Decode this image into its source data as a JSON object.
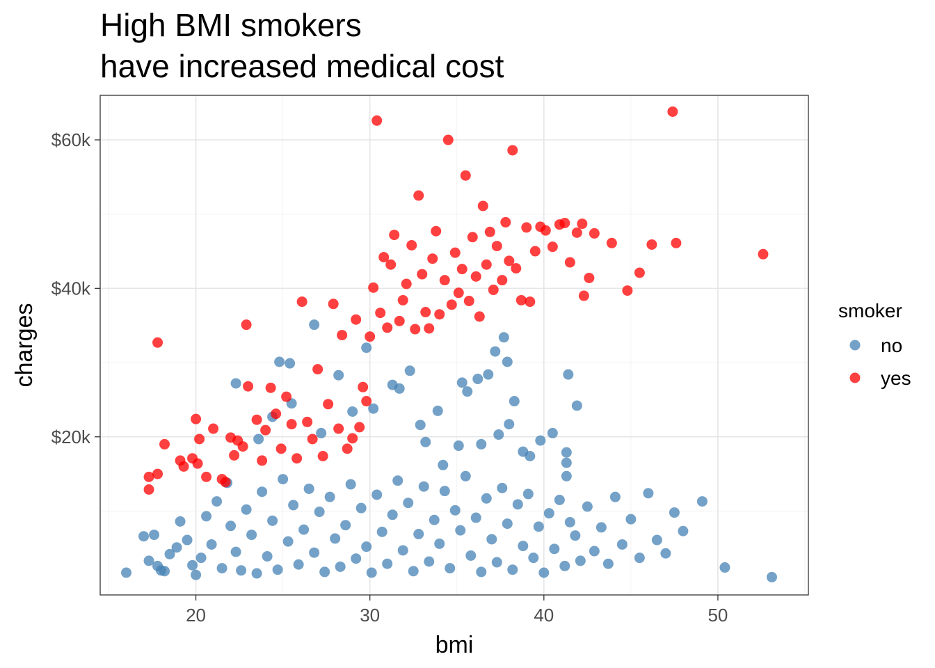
{
  "chart_data": {
    "type": "scatter",
    "title": [
      "High BMI smokers",
      "have increased medical cost"
    ],
    "xlabel": "bmi",
    "ylabel": "charges",
    "xlim": [
      14.5,
      55.2
    ],
    "ylim": [
      -1300,
      66000
    ],
    "x_ticks": [
      20,
      30,
      40,
      50
    ],
    "x_tick_labels": [
      "20",
      "30",
      "40",
      "50"
    ],
    "y_ticks": [
      20000,
      40000,
      60000
    ],
    "y_tick_labels": [
      "$20k",
      "$40k",
      "$60k"
    ],
    "grid": true,
    "legend": {
      "title": "smoker",
      "placement": "right"
    },
    "point_alpha": 0.75,
    "series": [
      {
        "name": "no",
        "color": "#4682b4",
        "points": [
          [
            16.0,
            1700
          ],
          [
            17.0,
            6600
          ],
          [
            17.3,
            3300
          ],
          [
            17.6,
            6800
          ],
          [
            17.8,
            2600
          ],
          [
            18.0,
            2000
          ],
          [
            18.2,
            1900
          ],
          [
            18.5,
            4200
          ],
          [
            18.9,
            5100
          ],
          [
            19.1,
            8600
          ],
          [
            19.5,
            6100
          ],
          [
            19.8,
            2700
          ],
          [
            20.0,
            1400
          ],
          [
            20.3,
            3700
          ],
          [
            20.6,
            9300
          ],
          [
            20.9,
            5500
          ],
          [
            21.2,
            11300
          ],
          [
            21.5,
            2300
          ],
          [
            21.8,
            13800
          ],
          [
            22.0,
            8000
          ],
          [
            22.3,
            4500
          ],
          [
            22.6,
            2000
          ],
          [
            22.9,
            10200
          ],
          [
            23.2,
            6800
          ],
          [
            23.5,
            1600
          ],
          [
            23.8,
            12600
          ],
          [
            24.1,
            3900
          ],
          [
            24.4,
            8700
          ],
          [
            24.7,
            2100
          ],
          [
            25.0,
            14300
          ],
          [
            25.3,
            5900
          ],
          [
            25.6,
            10800
          ],
          [
            25.9,
            2800
          ],
          [
            26.2,
            7500
          ],
          [
            26.5,
            13000
          ],
          [
            26.8,
            4400
          ],
          [
            27.1,
            9900
          ],
          [
            27.4,
            1800
          ],
          [
            27.7,
            11900
          ],
          [
            28.0,
            6300
          ],
          [
            28.3,
            2500
          ],
          [
            28.6,
            8100
          ],
          [
            28.9,
            13600
          ],
          [
            29.2,
            3600
          ],
          [
            29.5,
            10400
          ],
          [
            29.8,
            5200
          ],
          [
            30.1,
            1700
          ],
          [
            30.4,
            12200
          ],
          [
            30.7,
            7200
          ],
          [
            31.0,
            2900
          ],
          [
            31.3,
            9500
          ],
          [
            31.6,
            14100
          ],
          [
            31.9,
            4700
          ],
          [
            32.2,
            11100
          ],
          [
            32.5,
            1900
          ],
          [
            32.8,
            6900
          ],
          [
            33.1,
            13300
          ],
          [
            33.4,
            3200
          ],
          [
            33.7,
            8800
          ],
          [
            34.0,
            5600
          ],
          [
            34.3,
            12700
          ],
          [
            34.6,
            2300
          ],
          [
            34.9,
            10100
          ],
          [
            35.2,
            7400
          ],
          [
            35.5,
            14700
          ],
          [
            35.8,
            4000
          ],
          [
            36.1,
            9100
          ],
          [
            36.4,
            1800
          ],
          [
            36.7,
            11700
          ],
          [
            37.0,
            6200
          ],
          [
            37.3,
            3100
          ],
          [
            37.6,
            13100
          ],
          [
            37.9,
            8300
          ],
          [
            38.2,
            2100
          ],
          [
            38.5,
            10900
          ],
          [
            38.8,
            5300
          ],
          [
            39.1,
            12300
          ],
          [
            39.4,
            3700
          ],
          [
            39.7,
            7900
          ],
          [
            40.0,
            1700
          ],
          [
            40.3,
            9700
          ],
          [
            40.6,
            4900
          ],
          [
            40.9,
            11500
          ],
          [
            41.2,
            2600
          ],
          [
            41.5,
            8500
          ],
          [
            41.8,
            6700
          ],
          [
            42.1,
            3300
          ],
          [
            42.5,
            10600
          ],
          [
            42.9,
            4600
          ],
          [
            43.3,
            7800
          ],
          [
            43.7,
            2900
          ],
          [
            44.1,
            11900
          ],
          [
            44.5,
            5500
          ],
          [
            45.0,
            8900
          ],
          [
            45.5,
            3700
          ],
          [
            46.0,
            12400
          ],
          [
            46.5,
            6100
          ],
          [
            47.0,
            4300
          ],
          [
            47.5,
            9800
          ],
          [
            48.0,
            7300
          ],
          [
            49.1,
            11300
          ],
          [
            50.4,
            2400
          ],
          [
            53.1,
            1100
          ],
          [
            22.3,
            27200
          ],
          [
            23.6,
            19700
          ],
          [
            24.4,
            22700
          ],
          [
            24.8,
            30100
          ],
          [
            25.4,
            29900
          ],
          [
            25.5,
            24500
          ],
          [
            26.8,
            35100
          ],
          [
            27.2,
            20500
          ],
          [
            28.2,
            28300
          ],
          [
            29.0,
            23400
          ],
          [
            29.8,
            32000
          ],
          [
            30.2,
            23800
          ],
          [
            31.3,
            27000
          ],
          [
            31.7,
            26500
          ],
          [
            32.3,
            28900
          ],
          [
            32.9,
            21600
          ],
          [
            33.9,
            23500
          ],
          [
            35.3,
            27300
          ],
          [
            35.6,
            26100
          ],
          [
            36.2,
            27800
          ],
          [
            36.8,
            28400
          ],
          [
            37.2,
            31500
          ],
          [
            37.7,
            33400
          ],
          [
            37.9,
            30100
          ],
          [
            38.0,
            21700
          ],
          [
            38.3,
            24800
          ],
          [
            39.8,
            19500
          ],
          [
            40.5,
            20500
          ],
          [
            41.4,
            28400
          ],
          [
            41.9,
            24200
          ],
          [
            33.2,
            19300
          ],
          [
            34.2,
            16200
          ],
          [
            35.1,
            18800
          ],
          [
            36.4,
            19000
          ],
          [
            37.4,
            20300
          ],
          [
            38.8,
            18000
          ],
          [
            39.2,
            17400
          ],
          [
            41.3,
            17900
          ],
          [
            41.3,
            16500
          ],
          [
            41.3,
            14700
          ]
        ]
      },
      {
        "name": "yes",
        "color": "#ff0000",
        "points": [
          [
            17.3,
            14600
          ],
          [
            17.3,
            12900
          ],
          [
            17.8,
            15000
          ],
          [
            17.8,
            32700
          ],
          [
            18.2,
            19000
          ],
          [
            19.1,
            16800
          ],
          [
            19.3,
            16000
          ],
          [
            19.8,
            17100
          ],
          [
            20.0,
            22400
          ],
          [
            20.1,
            16400
          ],
          [
            20.2,
            19700
          ],
          [
            20.6,
            14600
          ],
          [
            21.0,
            21100
          ],
          [
            21.5,
            14300
          ],
          [
            21.7,
            13900
          ],
          [
            22.0,
            19900
          ],
          [
            22.2,
            17500
          ],
          [
            22.4,
            19500
          ],
          [
            22.7,
            18700
          ],
          [
            22.9,
            35100
          ],
          [
            23.0,
            26800
          ],
          [
            23.5,
            22300
          ],
          [
            23.8,
            16800
          ],
          [
            24.0,
            20900
          ],
          [
            24.3,
            26600
          ],
          [
            24.6,
            23100
          ],
          [
            24.9,
            18400
          ],
          [
            25.2,
            25400
          ],
          [
            25.5,
            21700
          ],
          [
            25.8,
            17100
          ],
          [
            26.1,
            38200
          ],
          [
            26.4,
            22000
          ],
          [
            26.7,
            19700
          ],
          [
            27.0,
            29100
          ],
          [
            27.3,
            17400
          ],
          [
            27.6,
            24400
          ],
          [
            27.9,
            37900
          ],
          [
            28.2,
            21100
          ],
          [
            28.4,
            33700
          ],
          [
            28.7,
            18400
          ],
          [
            29.0,
            19800
          ],
          [
            29.2,
            35800
          ],
          [
            29.4,
            21300
          ],
          [
            29.6,
            26700
          ],
          [
            29.8,
            24800
          ],
          [
            30.0,
            33500
          ],
          [
            30.2,
            40100
          ],
          [
            30.4,
            62600
          ],
          [
            30.6,
            36700
          ],
          [
            30.8,
            44200
          ],
          [
            31.0,
            34700
          ],
          [
            31.2,
            43200
          ],
          [
            31.4,
            47200
          ],
          [
            31.7,
            35600
          ],
          [
            31.9,
            38400
          ],
          [
            32.1,
            40600
          ],
          [
            32.4,
            45800
          ],
          [
            32.6,
            34500
          ],
          [
            32.8,
            52500
          ],
          [
            33.0,
            41900
          ],
          [
            33.2,
            36800
          ],
          [
            33.4,
            34600
          ],
          [
            33.6,
            44000
          ],
          [
            33.8,
            47700
          ],
          [
            34.0,
            36500
          ],
          [
            34.3,
            41100
          ],
          [
            34.5,
            60000
          ],
          [
            34.7,
            37800
          ],
          [
            34.9,
            44800
          ],
          [
            35.1,
            39400
          ],
          [
            35.3,
            42600
          ],
          [
            35.5,
            55200
          ],
          [
            35.7,
            38300
          ],
          [
            35.9,
            46900
          ],
          [
            36.1,
            41600
          ],
          [
            36.3,
            36200
          ],
          [
            36.5,
            51100
          ],
          [
            36.7,
            43200
          ],
          [
            36.9,
            47600
          ],
          [
            37.1,
            39800
          ],
          [
            37.3,
            45700
          ],
          [
            37.6,
            41100
          ],
          [
            37.8,
            48900
          ],
          [
            38.0,
            43700
          ],
          [
            38.2,
            58600
          ],
          [
            38.4,
            42700
          ],
          [
            38.7,
            38400
          ],
          [
            39.0,
            48200
          ],
          [
            39.2,
            38200
          ],
          [
            39.5,
            45000
          ],
          [
            39.8,
            48300
          ],
          [
            40.1,
            47800
          ],
          [
            40.5,
            45600
          ],
          [
            40.9,
            48600
          ],
          [
            41.2,
            48800
          ],
          [
            41.5,
            43500
          ],
          [
            41.9,
            47500
          ],
          [
            42.2,
            48700
          ],
          [
            42.3,
            39000
          ],
          [
            42.6,
            41400
          ],
          [
            42.9,
            47400
          ],
          [
            43.9,
            46100
          ],
          [
            44.8,
            39700
          ],
          [
            45.5,
            42100
          ],
          [
            46.2,
            45900
          ],
          [
            47.4,
            63800
          ],
          [
            47.6,
            46100
          ],
          [
            52.6,
            44600
          ]
        ]
      }
    ]
  }
}
